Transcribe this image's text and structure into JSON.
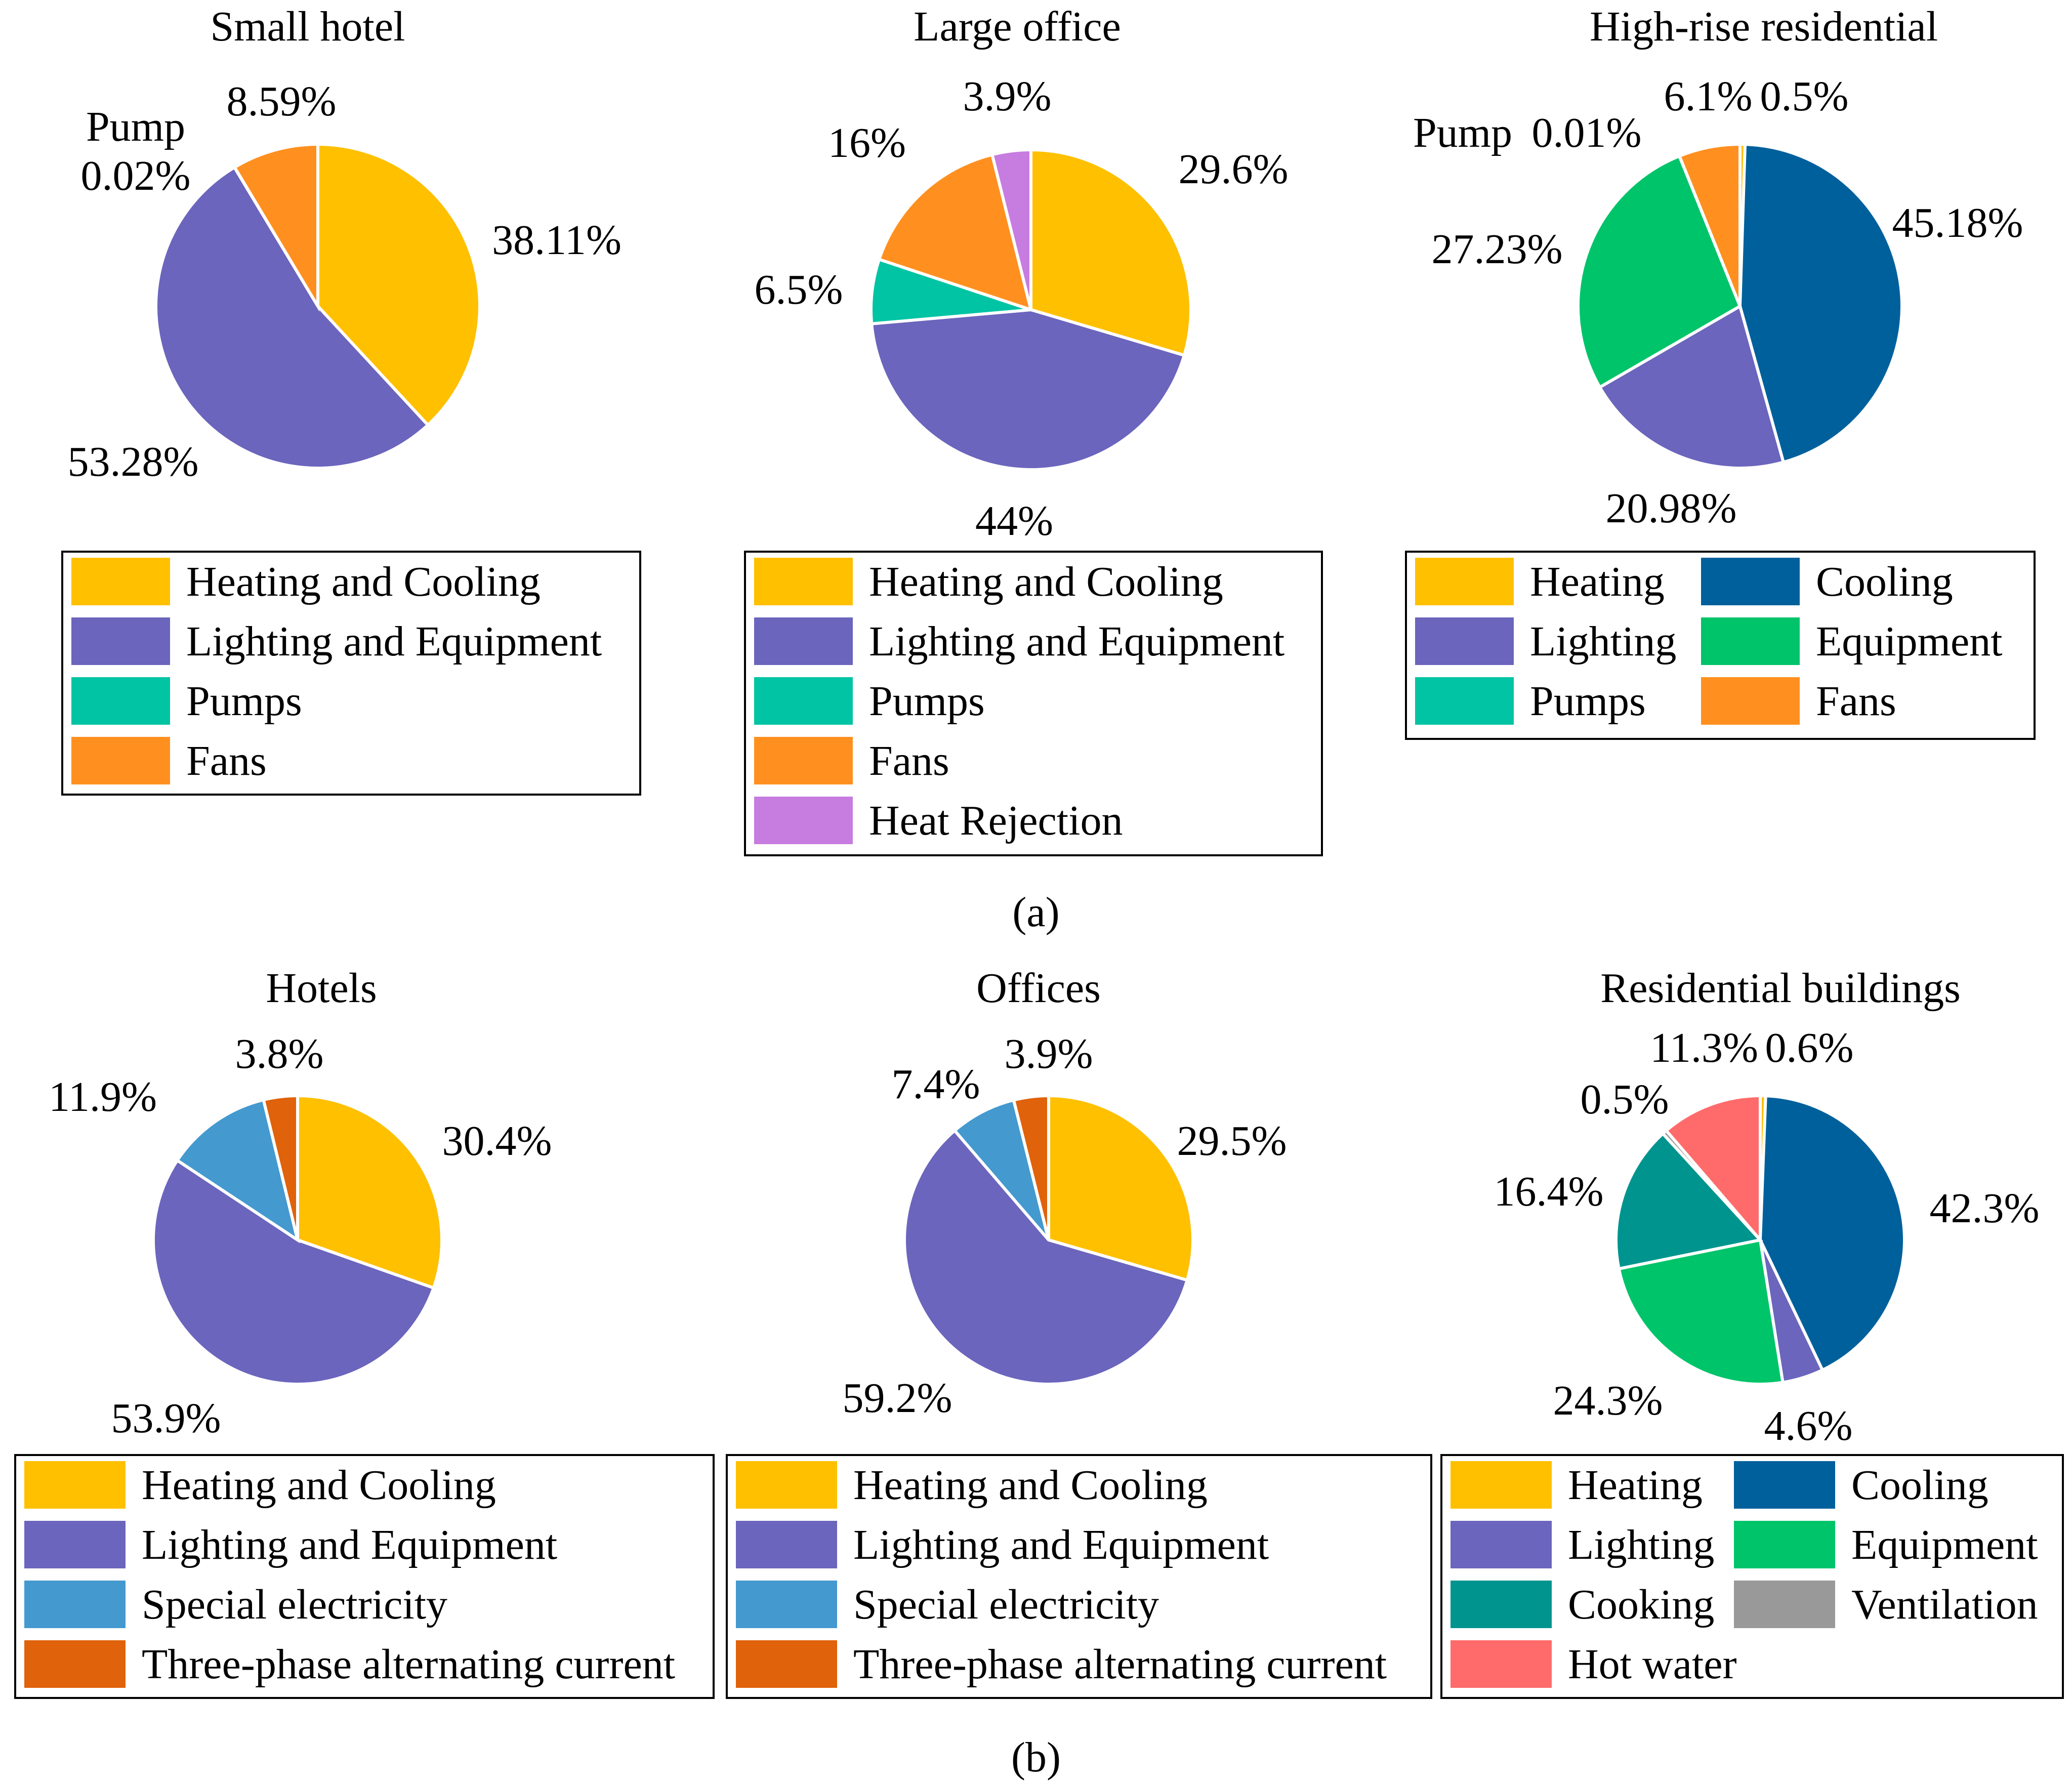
{
  "figure": {
    "caption_a": "(a)",
    "caption_b": "(b)"
  },
  "chart_data": [
    {
      "type": "pie",
      "title": "Small hotel",
      "slices": [
        {
          "label": "Heating and Cooling",
          "value": 38.11,
          "color": "#FFC000",
          "value_label": "38.11%"
        },
        {
          "label": "Lighting and Equipment",
          "value": 53.28,
          "color": "#6B65BD",
          "value_label": "53.28%"
        },
        {
          "label": "Pumps",
          "value": 0.02,
          "color": "#00C4A3",
          "value_label": "0.02%",
          "annotation": "Pump"
        },
        {
          "label": "Fans",
          "value": 8.59,
          "color": "#FF9020",
          "value_label": "8.59%"
        }
      ],
      "legend": [
        {
          "label": "Heating and Cooling",
          "color": "#FFC000"
        },
        {
          "label": "Lighting and Equipment",
          "color": "#6B65BD"
        },
        {
          "label": "Pumps",
          "color": "#00C4A3"
        },
        {
          "label": "Fans",
          "color": "#FF9020"
        }
      ]
    },
    {
      "type": "pie",
      "title": "Large office",
      "slices": [
        {
          "label": "Heating and Cooling",
          "value": 29.6,
          "color": "#FFC000",
          "value_label": "29.6%"
        },
        {
          "label": "Lighting and Equipment",
          "value": 44,
          "color": "#6B65BD",
          "value_label": "44%"
        },
        {
          "label": "Pumps",
          "value": 6.5,
          "color": "#00C4A3",
          "value_label": "6.5%"
        },
        {
          "label": "Fans",
          "value": 16,
          "color": "#FF9020",
          "value_label": "16%"
        },
        {
          "label": "Heat Rejection",
          "value": 3.9,
          "color": "#C77CE0",
          "value_label": "3.9%"
        }
      ],
      "legend": [
        {
          "label": "Heating and Cooling",
          "color": "#FFC000"
        },
        {
          "label": "Lighting and Equipment",
          "color": "#6B65BD"
        },
        {
          "label": "Pumps",
          "color": "#00C4A3"
        },
        {
          "label": "Fans",
          "color": "#FF9020"
        },
        {
          "label": "Heat Rejection",
          "color": "#C77CE0"
        }
      ]
    },
    {
      "type": "pie",
      "title": "High-rise residential",
      "slices": [
        {
          "label": "Heating",
          "value": 0.5,
          "color": "#FFC000",
          "value_label": "0.5%"
        },
        {
          "label": "Cooling",
          "value": 45.18,
          "color": "#00609C",
          "value_label": "45.18%"
        },
        {
          "label": "Lighting",
          "value": 20.98,
          "color": "#6B65BD",
          "value_label": "20.98%"
        },
        {
          "label": "Equipment",
          "value": 27.23,
          "color": "#00C46A",
          "value_label": "27.23%"
        },
        {
          "label": "Pumps",
          "value": 0.01,
          "color": "#00C4A3",
          "value_label": "0.01%",
          "annotation": "Pump"
        },
        {
          "label": "Fans",
          "value": 6.1,
          "color": "#FF9020",
          "value_label": "6.1%"
        }
      ],
      "legend": [
        {
          "label": "Heating",
          "color": "#FFC000"
        },
        {
          "label": "Cooling",
          "color": "#00609C"
        },
        {
          "label": "Lighting",
          "color": "#6B65BD"
        },
        {
          "label": "Equipment",
          "color": "#00C46A"
        },
        {
          "label": "Pumps",
          "color": "#00C4A3"
        },
        {
          "label": "Fans",
          "color": "#FF9020"
        }
      ]
    },
    {
      "type": "pie",
      "title": "Hotels",
      "slices": [
        {
          "label": "Heating and Cooling",
          "value": 30.4,
          "color": "#FFC000",
          "value_label": "30.4%"
        },
        {
          "label": "Lighting and Equipment",
          "value": 53.9,
          "color": "#6B65BD",
          "value_label": "53.9%"
        },
        {
          "label": "Special electricity",
          "value": 11.9,
          "color": "#4499CF",
          "value_label": "11.9%"
        },
        {
          "label": "Three-phase alternating current",
          "value": 3.8,
          "color": "#E0620A",
          "value_label": "3.8%"
        }
      ],
      "legend": [
        {
          "label": "Heating and Cooling",
          "color": "#FFC000"
        },
        {
          "label": "Lighting and Equipment",
          "color": "#6B65BD"
        },
        {
          "label": "Special electricity",
          "color": "#4499CF"
        },
        {
          "label": "Three-phase alternating current",
          "color": "#E0620A"
        }
      ]
    },
    {
      "type": "pie",
      "title": "Offices",
      "slices": [
        {
          "label": "Heating and Cooling",
          "value": 29.5,
          "color": "#FFC000",
          "value_label": "29.5%"
        },
        {
          "label": "Lighting and Equipment",
          "value": 59.2,
          "color": "#6B65BD",
          "value_label": "59.2%"
        },
        {
          "label": "Special electricity",
          "value": 7.4,
          "color": "#4499CF",
          "value_label": "7.4%"
        },
        {
          "label": "Three-phase alternating current",
          "value": 3.9,
          "color": "#E0620A",
          "value_label": "3.9%"
        }
      ],
      "legend": [
        {
          "label": "Heating and Cooling",
          "color": "#FFC000"
        },
        {
          "label": "Lighting and Equipment",
          "color": "#6B65BD"
        },
        {
          "label": "Special electricity",
          "color": "#4499CF"
        },
        {
          "label": "Three-phase alternating current",
          "color": "#E0620A"
        }
      ]
    },
    {
      "type": "pie",
      "title": "Residential buildings",
      "slices": [
        {
          "label": "Heating",
          "value": 0.6,
          "color": "#FFC000",
          "value_label": "0.6%"
        },
        {
          "label": "Cooling",
          "value": 42.3,
          "color": "#00609C",
          "value_label": "42.3%"
        },
        {
          "label": "Lighting",
          "value": 4.6,
          "color": "#6B65BD",
          "value_label": "4.6%"
        },
        {
          "label": "Equipment",
          "value": 24.3,
          "color": "#00C46A",
          "value_label": "24.3%"
        },
        {
          "label": "Cooking",
          "value": 16.4,
          "color": "#00948E",
          "value_label": "16.4%"
        },
        {
          "label": "Ventilation",
          "value": 0.5,
          "color": "#999999",
          "value_label": "0.5%"
        },
        {
          "label": "Hot water",
          "value": 11.3,
          "color": "#FF6B6B",
          "value_label": "11.3%"
        }
      ],
      "legend": [
        {
          "label": "Heating",
          "color": "#FFC000"
        },
        {
          "label": "Cooling",
          "color": "#00609C"
        },
        {
          "label": "Lighting",
          "color": "#6B65BD"
        },
        {
          "label": "Equipment",
          "color": "#00C46A"
        },
        {
          "label": "Cooking",
          "color": "#00948E"
        },
        {
          "label": "Ventilation",
          "color": "#999999"
        },
        {
          "label": "Hot water",
          "color": "#FF6B6B"
        }
      ]
    }
  ]
}
